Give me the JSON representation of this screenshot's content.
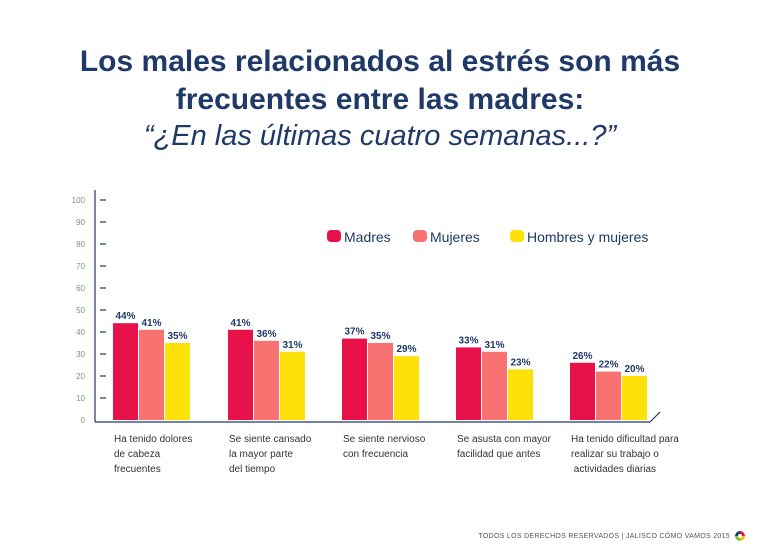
{
  "title_line1": "Los males relacionados al estrés son más",
  "title_line2": "frecuentes entre las madres:",
  "title_line3": "“¿En las últimas cuatro semanas...?”",
  "footer": "TODOS LOS DERECHOS RESERVADOS  |  JALISCO CÓMO VAMOS 2015",
  "chart_data": {
    "type": "bar",
    "categories": [
      [
        "Ha tenido dolores",
        "de cabeza",
        "frecuentes"
      ],
      [
        "Se siente cansado",
        "la mayor parte",
        "del tiempo"
      ],
      [
        "Se siente nervioso",
        "con frecuencia"
      ],
      [
        "Se asusta con mayor",
        "facilidad que antes"
      ],
      [
        "Ha tenido dificultad para",
        "realizar su trabajo o",
        " actividades diarias"
      ]
    ],
    "series": [
      {
        "name": "Madres",
        "values": [
          44,
          41,
          37,
          33,
          26
        ],
        "labels": [
          "44%",
          "41%",
          "37%",
          "33%",
          "26%"
        ],
        "color": "#e8114a"
      },
      {
        "name": "Mujeres",
        "values": [
          41,
          36,
          35,
          31,
          22
        ],
        "labels": [
          "41%",
          "36%",
          "35%",
          "31%",
          "22%"
        ],
        "color": "#f97272"
      },
      {
        "name": "Hombres y mujeres",
        "values": [
          35,
          31,
          29,
          23,
          20
        ],
        "labels": [
          "35%",
          "31%",
          "29%",
          "23%",
          "20%"
        ],
        "color": "#fde20a"
      }
    ],
    "y_ticks": [
      "0",
      "10",
      "20",
      "30",
      "40",
      "50",
      "60",
      "70",
      "80",
      "90",
      "100"
    ],
    "ylim": [
      0,
      100
    ],
    "legend_position": "top-right",
    "grid": false,
    "colors": {
      "title": "#1f3a68",
      "axis": "#1f3a68",
      "value_label": "#1f3a68"
    }
  }
}
